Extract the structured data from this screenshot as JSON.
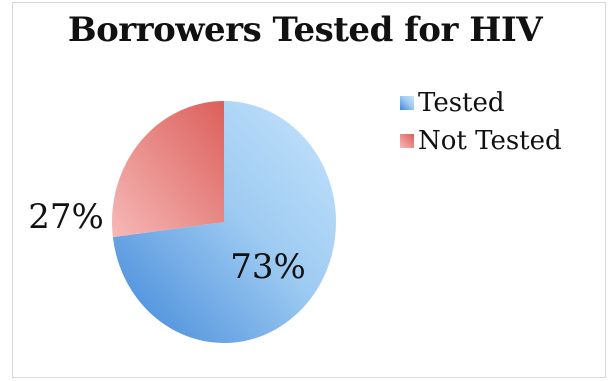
{
  "chart_data": {
    "type": "pie",
    "title": "Borrowers Tested for HIV",
    "categories": [
      "Tested",
      "Not Tested"
    ],
    "values": [
      73,
      27
    ],
    "value_labels": [
      "73%",
      "27%"
    ],
    "legend_position": "right",
    "colors": [
      "#9ecbf2",
      "#ef9a9a"
    ],
    "gradient_dark": [
      "#3f86d8",
      "#dc5f5b"
    ],
    "gradient_light": [
      "#c6e4fc",
      "#f6b9b7"
    ]
  }
}
